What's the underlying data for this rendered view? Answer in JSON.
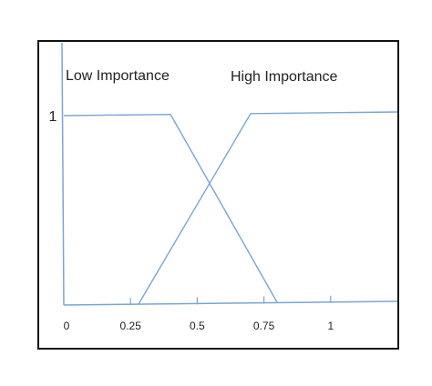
{
  "chart_data": {
    "type": "line",
    "title": "",
    "xlabel": "",
    "ylabel": "",
    "xlim": [
      0,
      1.25
    ],
    "ylim": [
      0,
      1
    ],
    "x_ticks": [
      {
        "value": 0,
        "label": "0"
      },
      {
        "value": 0.25,
        "label": "0.25"
      },
      {
        "value": 0.5,
        "label": "0.5"
      },
      {
        "value": 0.75,
        "label": "0.75"
      },
      {
        "value": 1,
        "label": "1"
      }
    ],
    "y_ticks": [
      {
        "value": 1,
        "label": "1"
      }
    ],
    "grid": false,
    "legend": "none",
    "series": [
      {
        "name": "Low Importance",
        "color": "#7aa6d6",
        "points": [
          [
            0,
            1
          ],
          [
            0.4,
            1
          ],
          [
            0.8,
            0
          ]
        ]
      },
      {
        "name": "High Importance",
        "color": "#7aa6d6",
        "points": [
          [
            0.28,
            0
          ],
          [
            0.7,
            1
          ],
          [
            1.25,
            1
          ]
        ]
      }
    ],
    "axis_color": "#7aa6d6"
  }
}
